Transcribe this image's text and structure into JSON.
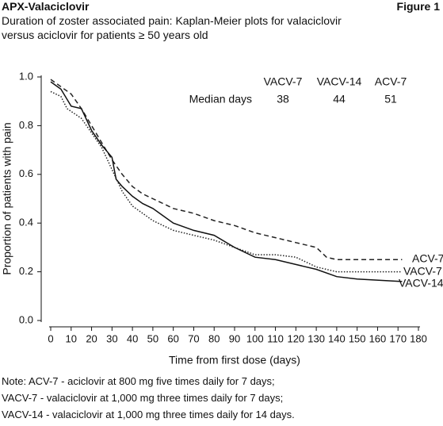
{
  "chart_data": {
    "type": "line",
    "header": "APX-Valaciclovir",
    "figure_label": "Figure 1",
    "title": "Duration of zoster associated pain: Kaplan-Meier plots for valaciclovir versus aciclovir for patients ≥ 50 years old",
    "x_label": "Time from first dose (days)",
    "y_label": "Proportion of patients with pain",
    "xlim": [
      0,
      180
    ],
    "ylim": [
      0,
      1
    ],
    "xticks": [
      0,
      10,
      20,
      30,
      40,
      50,
      60,
      70,
      80,
      90,
      100,
      110,
      120,
      130,
      140,
      150,
      160,
      170,
      180
    ],
    "yticks": [
      {
        "value": 0,
        "label": "0.0"
      },
      0.2,
      0.4,
      0.6,
      0.8,
      {
        "value": 1,
        "label": "1.0"
      }
    ],
    "series": [
      {
        "name": "ACV-7",
        "color": "#222",
        "dash": "6,4",
        "x": [
          0,
          5,
          10,
          15,
          20,
          25,
          30,
          35,
          40,
          45,
          50,
          55,
          60,
          70,
          80,
          90,
          100,
          110,
          120,
          130,
          135,
          140,
          150,
          172
        ],
        "values": [
          0.99,
          0.96,
          0.93,
          0.87,
          0.8,
          0.73,
          0.66,
          0.6,
          0.55,
          0.52,
          0.5,
          0.48,
          0.46,
          0.44,
          0.41,
          0.39,
          0.36,
          0.34,
          0.32,
          0.3,
          0.26,
          0.25,
          0.25,
          0.25
        ]
      },
      {
        "name": "VACV-7",
        "color": "#222",
        "dash": "1.5,2",
        "x": [
          0,
          5,
          8,
          15,
          20,
          25,
          30,
          35,
          40,
          45,
          50,
          55,
          60,
          70,
          80,
          90,
          100,
          110,
          120,
          130,
          140,
          150,
          172
        ],
        "values": [
          0.94,
          0.92,
          0.87,
          0.83,
          0.77,
          0.71,
          0.62,
          0.53,
          0.47,
          0.44,
          0.41,
          0.39,
          0.37,
          0.35,
          0.33,
          0.3,
          0.27,
          0.27,
          0.26,
          0.22,
          0.2,
          0.2,
          0.2
        ]
      },
      {
        "name": "VACV-14",
        "color": "#111",
        "dash": "none",
        "x": [
          0,
          5,
          10,
          15,
          20,
          25,
          30,
          32,
          35,
          40,
          45,
          50,
          55,
          60,
          70,
          80,
          90,
          100,
          110,
          120,
          130,
          140,
          150,
          172
        ],
        "values": [
          0.98,
          0.95,
          0.88,
          0.87,
          0.78,
          0.72,
          0.67,
          0.58,
          0.55,
          0.51,
          0.48,
          0.46,
          0.43,
          0.4,
          0.37,
          0.35,
          0.3,
          0.26,
          0.25,
          0.23,
          0.21,
          0.18,
          0.17,
          0.16
        ]
      }
    ],
    "median_table": {
      "columns": [
        "VACV-7",
        "VACV-14",
        "ACV-7"
      ],
      "row_label": "Median days",
      "values": [
        38,
        44,
        51
      ]
    },
    "notes": [
      "Note: ACV-7 - aciclovir at 800 mg five times daily for 7 days;",
      "VACV-7 - valaciclovir at 1,000 mg three times daily for 7 days;",
      "VACV-14 - valaciclovir at 1,000 mg three times daily for 14 days."
    ]
  }
}
